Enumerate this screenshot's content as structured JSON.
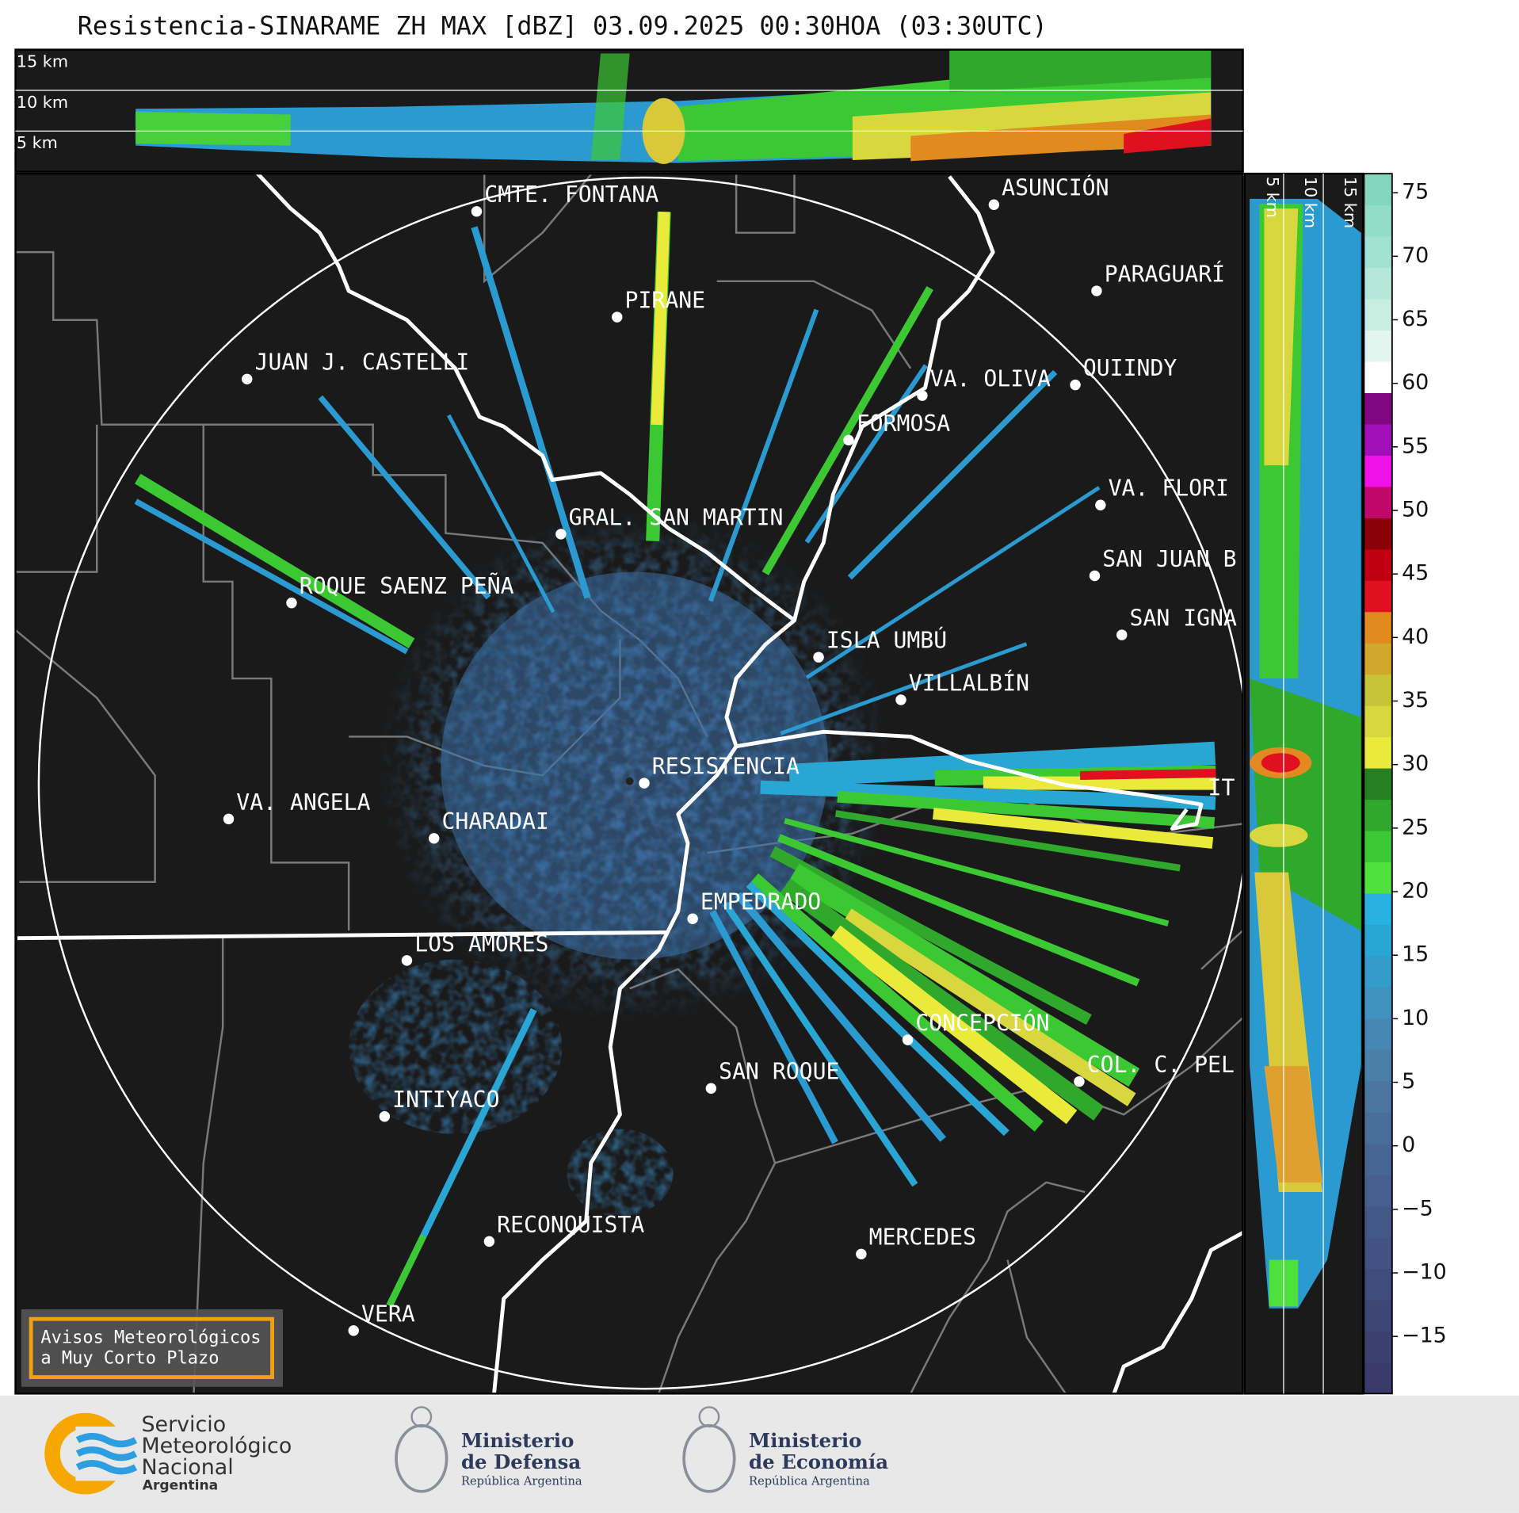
{
  "title": "Resistencia-SINARAME ZH MAX [dBZ] 03.09.2025 00:30HOA (03:30UTC)",
  "top_panel_labels": [
    "15 km",
    "10 km",
    "5 km"
  ],
  "side_panel_labels": [
    "5 km",
    "10 km",
    "15 km"
  ],
  "cities": [
    "CMTE. FONTANA",
    "ASUNCIÓN",
    "PARAGUARÍ",
    "PIRANE",
    "JUAN J. CASTELLI",
    "VA. OLIVA",
    "QUIINDY",
    "FORMOSA",
    "VA. FLORI",
    "GRAL. SAN MARTIN",
    "SAN JUAN B",
    "ROQUE SAENZ PEÑA",
    "SAN IGNA",
    "ISLA UMBÚ",
    "VILLALBÍN",
    "RESISTENCIA",
    "VA. ANGELA",
    "CHARADAI",
    "IT",
    "EMPEDRADO",
    "LOS AMORES",
    "CONCEPCIÓN",
    "COL. C. PEL",
    "SAN ROQUE",
    "INTIYACO",
    "RECONQUISTA",
    "MERCEDES",
    "VERA"
  ],
  "colorbar": {
    "clim": [
      -19.5,
      76.5
    ],
    "ticks": [
      75,
      70,
      65,
      60,
      55,
      50,
      45,
      40,
      35,
      30,
      25,
      20,
      15,
      10,
      5,
      0,
      {
        "value": -5,
        "label": "−5"
      },
      {
        "value": -10,
        "label": "−10"
      },
      {
        "value": -15,
        "label": "−15"
      }
    ],
    "colors": [
      "#3a3a6a",
      "#3c4070",
      "#3e4676",
      "#404c7c",
      "#425282",
      "#445888",
      "#465f8e",
      "#486694",
      "#4a6e9a",
      "#4b76a0",
      "#4a7fa8",
      "#4788b2",
      "#3f92bd",
      "#339cc8",
      "#2aa6d4",
      "#28b0e0",
      "#4ee03c",
      "#3cc833",
      "#30a82b",
      "#267f22",
      "#eaea3a",
      "#d8d83e",
      "#c8c43a",
      "#d2a82c",
      "#e08a20",
      "#e01020",
      "#c00010",
      "#8a0008",
      "#c0086a",
      "#f010e8",
      "#a010b8",
      "#800880",
      "#ffffff",
      "#e2f5ee",
      "#c8eee2",
      "#b4e8d8",
      "#a2e2d0",
      "#92dcc8",
      "#84d6be"
    ]
  },
  "notice": [
    "Avisos Meteorológicos",
    "a Muy Corto Plazo"
  ],
  "logos": {
    "smn": [
      "Servicio",
      "Meteorológico",
      "Nacional",
      "Argentina"
    ],
    "defensa": [
      "Ministerio",
      "de Defensa",
      "República Argentina"
    ],
    "economia": [
      "Ministerio",
      "de Economía",
      "República Argentina"
    ]
  }
}
